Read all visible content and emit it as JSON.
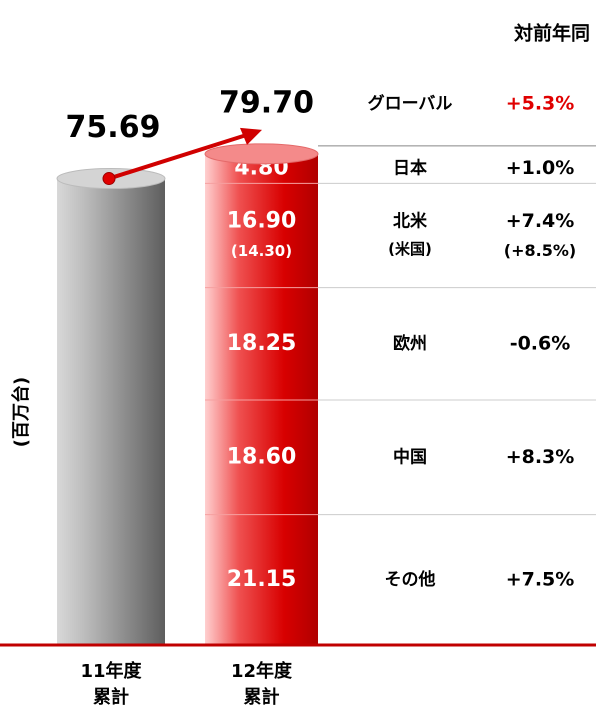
{
  "chart_data": {
    "type": "stacked_cylinder",
    "title": "対前年同",
    "y_label": "(百万台)",
    "categories": [
      [
        "11年度",
        "累計"
      ],
      [
        "12年度",
        "累計"
      ]
    ],
    "totals": [
      75.69,
      79.7
    ],
    "total_labels": [
      "75.69",
      "79.70"
    ],
    "ylim": [
      0,
      80
    ],
    "global": {
      "name": "グローバル",
      "growth": "+5.3%"
    },
    "segments": [
      {
        "name": "その他",
        "value": 21.15,
        "value_label": "21.15",
        "growth": "+7.5%"
      },
      {
        "name": "中国",
        "value": 18.6,
        "value_label": "18.60",
        "growth": "+8.3%"
      },
      {
        "name": "欧州",
        "value": 18.25,
        "value_label": "18.25",
        "growth": "-0.6%"
      },
      {
        "name": "北米",
        "value": 16.9,
        "value_label": "16.90",
        "growth": "+7.4%",
        "sub_name": "(米国)",
        "sub_value": 14.3,
        "sub_value_label": "(14.30)",
        "sub_growth": "(+8.5%)"
      },
      {
        "name": "日本",
        "value": 4.8,
        "value_label": "4.80",
        "growth": "+1.0%"
      }
    ],
    "colors": [
      "#8c8c8c",
      "#e00000"
    ]
  }
}
